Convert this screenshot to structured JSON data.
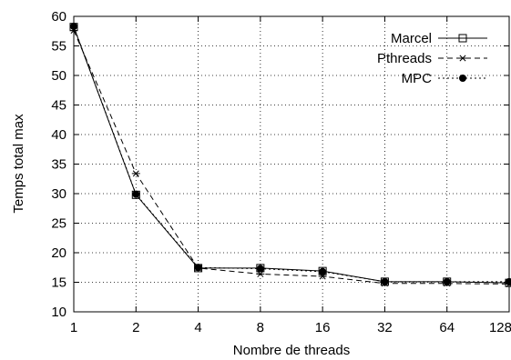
{
  "chart_data": {
    "type": "line",
    "title": "",
    "xlabel": "Nombre de threads",
    "ylabel": "Temps total max",
    "x_categories": [
      "1",
      "2",
      "4",
      "8",
      "16",
      "32",
      "64",
      "128"
    ],
    "x_scale": "log2",
    "ylim": [
      10,
      60
    ],
    "yticks": [
      "10",
      "15",
      "20",
      "25",
      "30",
      "35",
      "40",
      "45",
      "50",
      "55",
      "60"
    ],
    "grid": true,
    "legend_position": "top-right",
    "series": [
      {
        "name": "Marcel",
        "line_style": "solid",
        "marker": "open-square",
        "values": [
          58.2,
          29.8,
          17.4,
          17.4,
          16.9,
          15.1,
          15.1,
          14.9
        ]
      },
      {
        "name": "Pthreads",
        "line_style": "dashed",
        "marker": "asterisk",
        "values": [
          57.6,
          33.4,
          17.4,
          16.4,
          16.0,
          14.8,
          14.8,
          14.7
        ]
      },
      {
        "name": "MPC",
        "line_style": "dotted",
        "marker": "filled-circle",
        "values": [
          58.3,
          29.9,
          17.5,
          17.3,
          16.8,
          15.1,
          15.1,
          15.1
        ]
      }
    ]
  }
}
